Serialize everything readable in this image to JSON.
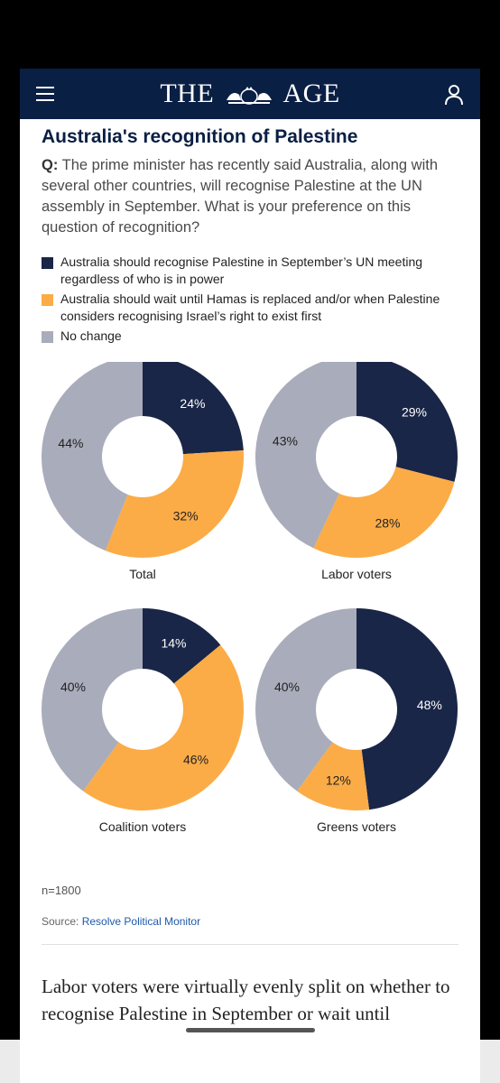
{
  "masthead": {
    "logo_left": "THE",
    "logo_right": "AGE",
    "menu_icon": "hamburger-menu-icon",
    "user_icon": "user-account-icon",
    "background": "#0a1f44"
  },
  "article": {
    "title": "Australia's recognition of Palestine",
    "question_prefix": "Q:",
    "question_text": "The prime minister has recently said Australia, along with several other countries, will recognise Palestine at the UN assembly in September. What is your preference on this question of recognition?",
    "legend": [
      {
        "label": "Australia should recognise Palestine in September’s UN meeting regardless of who is in power",
        "color": "#1a2647"
      },
      {
        "label": "Australia should wait until Hamas is replaced and/or when Palestine considers recognising Israel’s right to exist first",
        "color": "#fbac47"
      },
      {
        "label": "No change",
        "color": "#a9acba"
      }
    ],
    "n_label": "n=1800",
    "source_prefix": "Source:",
    "source_name": "Resolve Political Monitor",
    "body_text": "Labor voters were virtually evenly split on whether to recognise Palestine in September or wait until"
  },
  "chart_data": [
    {
      "type": "pie",
      "title": "Total",
      "categories": [
        "Australia should recognise Palestine in September’s UN meeting regardless of who is in power",
        "Australia should wait until Hamas is replaced and/or when Palestine considers recognising Israel’s right to exist first",
        "No change"
      ],
      "values": [
        24,
        32,
        44
      ],
      "value_labels": [
        "24%",
        "32%",
        "44%"
      ],
      "colors": [
        "#1a2647",
        "#fbac47",
        "#a9acba"
      ],
      "hole": true
    },
    {
      "type": "pie",
      "title": "Labor voters",
      "categories": [
        "Australia should recognise Palestine in September’s UN meeting regardless of who is in power",
        "Australia should wait until Hamas is replaced and/or when Palestine considers recognising Israel’s right to exist first",
        "No change"
      ],
      "values": [
        29,
        28,
        43
      ],
      "value_labels": [
        "29%",
        "28%",
        "43%"
      ],
      "colors": [
        "#1a2647",
        "#fbac47",
        "#a9acba"
      ],
      "hole": true
    },
    {
      "type": "pie",
      "title": "Coalition voters",
      "categories": [
        "Australia should recognise Palestine in September’s UN meeting regardless of who is in power",
        "Australia should wait until Hamas is replaced and/or when Palestine considers recognising Israel’s right to exist first",
        "No change"
      ],
      "values": [
        14,
        46,
        40
      ],
      "value_labels": [
        "14%",
        "46%",
        "40%"
      ],
      "colors": [
        "#1a2647",
        "#fbac47",
        "#a9acba"
      ],
      "hole": true
    },
    {
      "type": "pie",
      "title": "Greens voters",
      "categories": [
        "Australia should recognise Palestine in September’s UN meeting regardless of who is in power",
        "Australia should wait until Hamas is replaced and/or when Palestine considers recognising Israel’s right to exist first",
        "No change"
      ],
      "values": [
        48,
        12,
        40
      ],
      "value_labels": [
        "48%",
        "12%",
        "40%"
      ],
      "colors": [
        "#1a2647",
        "#fbac47",
        "#a9acba"
      ],
      "hole": true
    }
  ]
}
